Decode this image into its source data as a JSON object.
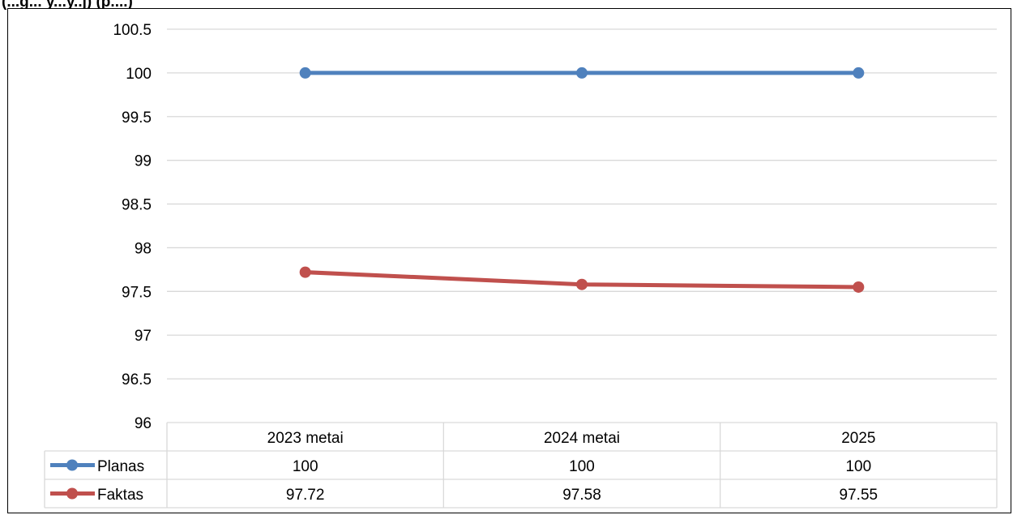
{
  "header": {
    "title_fragment": "(...g... y...y..j) (p....)"
  },
  "chart_data": {
    "type": "line",
    "categories": [
      "2023 metai",
      "2024 metai",
      "2025"
    ],
    "series": [
      {
        "name": "Planas",
        "values": [
          100,
          100,
          100
        ],
        "value_labels": [
          "100",
          "100",
          "100"
        ],
        "color": "#4F81BD"
      },
      {
        "name": "Faktas",
        "values": [
          97.72,
          97.58,
          97.55
        ],
        "value_labels": [
          "97.72",
          "97.58",
          "97.55"
        ],
        "color": "#C0504D"
      }
    ],
    "ylim": [
      96,
      100.5
    ],
    "yticks": [
      "96",
      "96.5",
      "97",
      "97.5",
      "98",
      "98.5",
      "99",
      "99.5",
      "100",
      "100.5"
    ],
    "grid": true,
    "legend": "data-table"
  }
}
